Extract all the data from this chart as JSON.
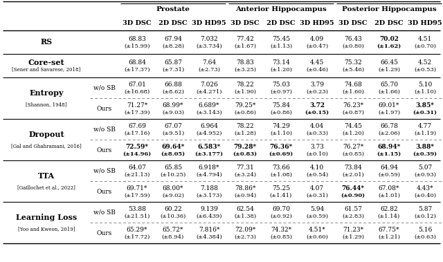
{
  "bg_color": "#ffffff",
  "group_headers": [
    "Prostate",
    "Anterior Hippocampus",
    "Posterior Hippocampus"
  ],
  "col_headers": [
    "3D DSC",
    "2D DSC",
    "3D HD95",
    "3D DSC",
    "2D DSC",
    "3D HD95",
    "3D DSC",
    "2D DSC",
    "3D HD95"
  ],
  "rows": [
    {
      "method": "RS",
      "ref": "",
      "sub": "",
      "vals": [
        "68.83",
        "67.94",
        "7.032",
        "77.42",
        "75.45",
        "4.09",
        "76.43",
        "70.02",
        "4.51"
      ],
      "stds": [
        "(±15.99)",
        "(±8.28)",
        "(±3.734)",
        "(±1.67)",
        "(±1.13)",
        "(±0.47)",
        "(±0.80)",
        "(±1.62)",
        "(±0.70)"
      ],
      "bold": [
        false,
        false,
        false,
        false,
        false,
        false,
        false,
        true,
        false
      ],
      "sep_after": true,
      "dash_after": false
    },
    {
      "method": "Core-set",
      "ref": "[Sener and Savarese, 2018]",
      "sub": "",
      "vals": [
        "68.84",
        "65.87",
        "7.64",
        "78.83",
        "73.14",
        "4.45",
        "75.32",
        "66.45",
        "4.52"
      ],
      "stds": [
        "(±17.37)",
        "(±7.31)",
        "(±2.73)",
        "(±3.25)",
        "(±1.20)",
        "(±0.46)",
        "(±5.46)",
        "(±1.29)",
        "(±0.53)"
      ],
      "bold": [
        false,
        false,
        false,
        false,
        false,
        false,
        false,
        false,
        false
      ],
      "sep_after": true,
      "dash_after": false
    },
    {
      "method": "Entropy",
      "ref": "[Shannon, 1948]",
      "sub": "w/o SB",
      "vals": [
        "67.01",
        "66.88",
        "7.026",
        "78.22",
        "75.03",
        "3.79",
        "74.68",
        "65.70",
        "5.10"
      ],
      "stds": [
        "(±16.68)",
        "(±8.62)",
        "(±4.271)",
        "(±1.90)",
        "(±0.97)",
        "(±0.23)",
        "(±1.60)",
        "(±1.66)",
        "(±1.10)"
      ],
      "bold": [
        false,
        false,
        false,
        false,
        false,
        false,
        false,
        false,
        false
      ],
      "sep_after": false,
      "dash_after": true
    },
    {
      "method": "",
      "ref": "",
      "sub": "Ours",
      "vals": [
        "71.27*",
        "68.99*",
        "6.689*",
        "79.25*",
        "75.84",
        "3.72",
        "76.23*",
        "69.01*",
        "3.85*"
      ],
      "stds": [
        "(±17.39)",
        "(±9.03)",
        "(±3.143)",
        "(±0.86)",
        "(±0.86)",
        "(±0.15)",
        "(±0.87)",
        "(±1.97)",
        "(±0.31)"
      ],
      "bold": [
        false,
        false,
        false,
        false,
        false,
        true,
        false,
        false,
        true
      ],
      "sep_after": true,
      "dash_after": false
    },
    {
      "method": "Dropout",
      "ref": "[Gal and Ghahramani, 2016]",
      "sub": "w/o SB",
      "vals": [
        "67.69",
        "67.07",
        "6.964",
        "78.22",
        "74.29",
        "4.04",
        "74.45",
        "66.78",
        "4.77"
      ],
      "stds": [
        "(±17.16)",
        "(±9.51)",
        "(±4.952)",
        "(±1.28)",
        "(±1.10)",
        "(±0.33)",
        "(±1.20)",
        "(±2.06)",
        "(±1.19)"
      ],
      "bold": [
        false,
        false,
        false,
        false,
        false,
        false,
        false,
        false,
        false
      ],
      "sep_after": false,
      "dash_after": true
    },
    {
      "method": "",
      "ref": "",
      "sub": "Ours",
      "vals": [
        "72.59*",
        "69.64*",
        "6.583*",
        "79.28*",
        "76.36*",
        "3.73",
        "76.27*",
        "68.94*",
        "3.88*"
      ],
      "stds": [
        "(±14.96)",
        "(±8.05)",
        "(±3.177)",
        "(±0.83)",
        "(±0.69)",
        "(±0.10)",
        "(±0.85)",
        "(±1.15)",
        "(±0.39)"
      ],
      "bold": [
        true,
        true,
        true,
        true,
        true,
        false,
        false,
        true,
        true
      ],
      "sep_after": true,
      "dash_after": false
    },
    {
      "method": "TTA",
      "ref": "[Gaillochet et al., 2022]",
      "sub": "w/o SB",
      "vals": [
        "64.07",
        "65.85",
        "6.918*",
        "77.31",
        "73.66",
        "4.10",
        "73.84",
        "64.94",
        "5.07"
      ],
      "stds": [
        "(±21.13)",
        "(±10.25)",
        "(±4.794)",
        "(±3.24)",
        "(±1.08)",
        "(±0.54)",
        "(±2.01)",
        "(±0.59)",
        "(±0.93)"
      ],
      "bold": [
        false,
        false,
        false,
        false,
        false,
        false,
        false,
        false,
        false
      ],
      "sep_after": false,
      "dash_after": true
    },
    {
      "method": "",
      "ref": "",
      "sub": "Ours",
      "vals": [
        "69.71*",
        "68.00*",
        "7.188",
        "78.86*",
        "75.25",
        "4.07",
        "76.44*",
        "67.08*",
        "4.43*"
      ],
      "stds": [
        "(±17.59)",
        "(±9.02)",
        "(±3.173)",
        "(±0.94)",
        "(±1.41)",
        "(±0.31)",
        "(±0.90)",
        "(±1.01)",
        "(±0.40)"
      ],
      "bold": [
        false,
        false,
        false,
        false,
        false,
        false,
        true,
        false,
        false
      ],
      "sep_after": true,
      "dash_after": false
    },
    {
      "method": "Learning Loss",
      "ref": "[Yoo and Kweon, 2019]",
      "sub": "w/o SB",
      "vals": [
        "53.88",
        "60.22",
        "9.139",
        "62.54",
        "69.70",
        "5.94",
        "61.57",
        "62.82",
        "5.87"
      ],
      "stds": [
        "(±21.51)",
        "(±10.36)",
        "(±6.439)",
        "(±1.38)",
        "(±0.92)",
        "(±0.59)",
        "(±2.83)",
        "(±1.14)",
        "(±0.12)"
      ],
      "bold": [
        false,
        false,
        false,
        false,
        false,
        false,
        false,
        false,
        false
      ],
      "sep_after": false,
      "dash_after": true
    },
    {
      "method": "",
      "ref": "",
      "sub": "Ours",
      "vals": [
        "65.29*",
        "65.72*",
        "7.816*",
        "72.09*",
        "74.32*",
        "4.51*",
        "71.23*",
        "67.75*",
        "5.16"
      ],
      "stds": [
        "(±17.72)",
        "(±8.94)",
        "(±4.384)",
        "(±2.73)",
        "(±0.85)",
        "(±0.60)",
        "(±1.29)",
        "(±1.21)",
        "(±0.63)"
      ],
      "bold": [
        false,
        false,
        false,
        false,
        false,
        false,
        false,
        false,
        false
      ],
      "sep_after": false,
      "dash_after": false
    }
  ],
  "method_groups": [
    {
      "rows": [
        0
      ],
      "method": "RS",
      "ref": ""
    },
    {
      "rows": [
        1
      ],
      "method": "Core-set",
      "ref": "[Sener and Savarese, 2018]"
    },
    {
      "rows": [
        2,
        3
      ],
      "method": "Entropy",
      "ref": "[Shannon, 1948]"
    },
    {
      "rows": [
        4,
        5
      ],
      "method": "Dropout",
      "ref": "[Gal and Ghahramani, 2016]"
    },
    {
      "rows": [
        6,
        7
      ],
      "method": "TTA",
      "ref": "[Gaillochet et al., 2022]"
    },
    {
      "rows": [
        8,
        9
      ],
      "method": "Learning Loss",
      "ref": "[Yoo and Kweon, 2019]"
    }
  ]
}
